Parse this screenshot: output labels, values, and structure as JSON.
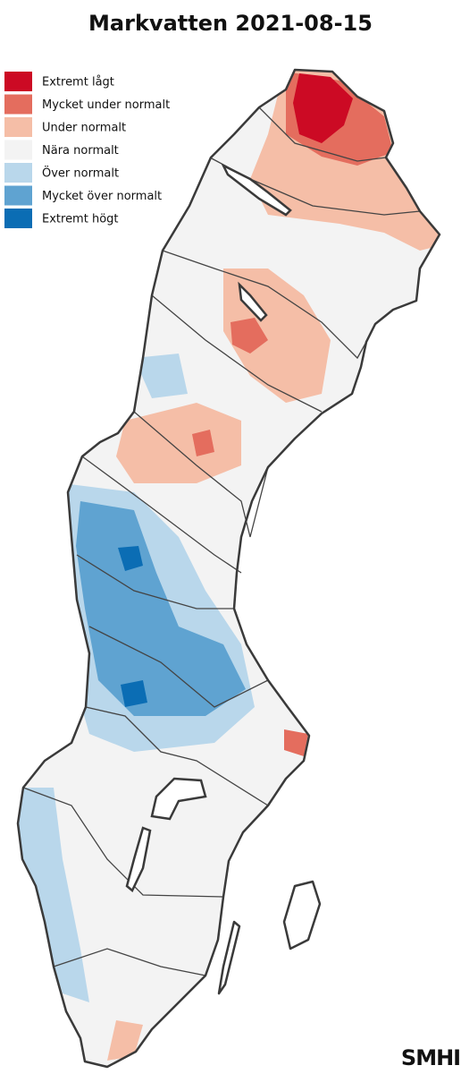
{
  "title": "Markvatten 2021-08-15",
  "legend": [
    {
      "label": "Extremt lågt",
      "color": "#cc0a24"
    },
    {
      "label": "Mycket under normalt",
      "color": "#e46d5e"
    },
    {
      "label": "Under normalt",
      "color": "#f5bea7"
    },
    {
      "label": "Nära normalt",
      "color": "#f3f3f3"
    },
    {
      "label": "Över normalt",
      "color": "#b9d7eb"
    },
    {
      "label": "Mycket över normalt",
      "color": "#5fa3d1"
    },
    {
      "label": "Extremt högt",
      "color": "#0b6db4"
    }
  ],
  "logo": "SMHI"
}
